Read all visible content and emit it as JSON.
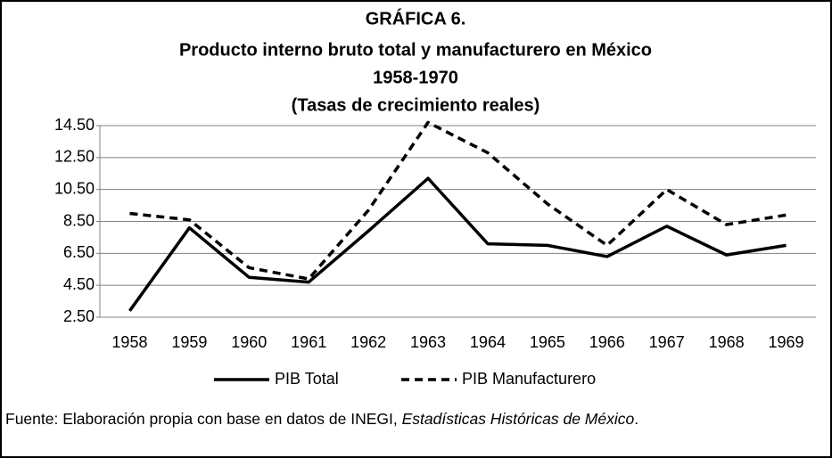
{
  "chart_data": {
    "type": "line",
    "title": [
      "GRÁFICA 6.",
      "Producto interno bruto total y manufacturero en México",
      "1958-1970",
      "(Tasas de crecimiento reales)"
    ],
    "categories": [
      "1958",
      "1959",
      "1960",
      "1961",
      "1962",
      "1963",
      "1964",
      "1965",
      "1966",
      "1967",
      "1968",
      "1969"
    ],
    "series": [
      {
        "name": "PIB Total",
        "color": "#000000",
        "dash": false,
        "values": [
          2.9,
          8.1,
          5.0,
          4.7,
          7.9,
          11.2,
          7.1,
          7.0,
          6.3,
          8.2,
          6.4,
          7.0
        ]
      },
      {
        "name": "PIB Manufacturero",
        "color": "#000000",
        "dash": true,
        "values": [
          9.0,
          8.6,
          5.6,
          4.9,
          9.2,
          14.7,
          12.8,
          9.6,
          7.0,
          10.5,
          8.3,
          8.9
        ]
      }
    ],
    "ylim": [
      2.5,
      14.5
    ],
    "yticks": [
      {
        "value": 2.5,
        "label": "2.50"
      },
      {
        "value": 4.5,
        "label": "4.50"
      },
      {
        "value": 6.5,
        "label": "6.50"
      },
      {
        "value": 8.5,
        "label": "8.50"
      },
      {
        "value": 10.5,
        "label": "10.50"
      },
      {
        "value": 12.5,
        "label": "12.50"
      },
      {
        "value": 14.5,
        "label": "14.50"
      }
    ],
    "grid": true,
    "legend": "bottom"
  },
  "source": {
    "text": "Fuente: Elaboración propia con base en datos de INEGI, ",
    "italic": "Estadísticas Históricas de México",
    "end": "."
  }
}
